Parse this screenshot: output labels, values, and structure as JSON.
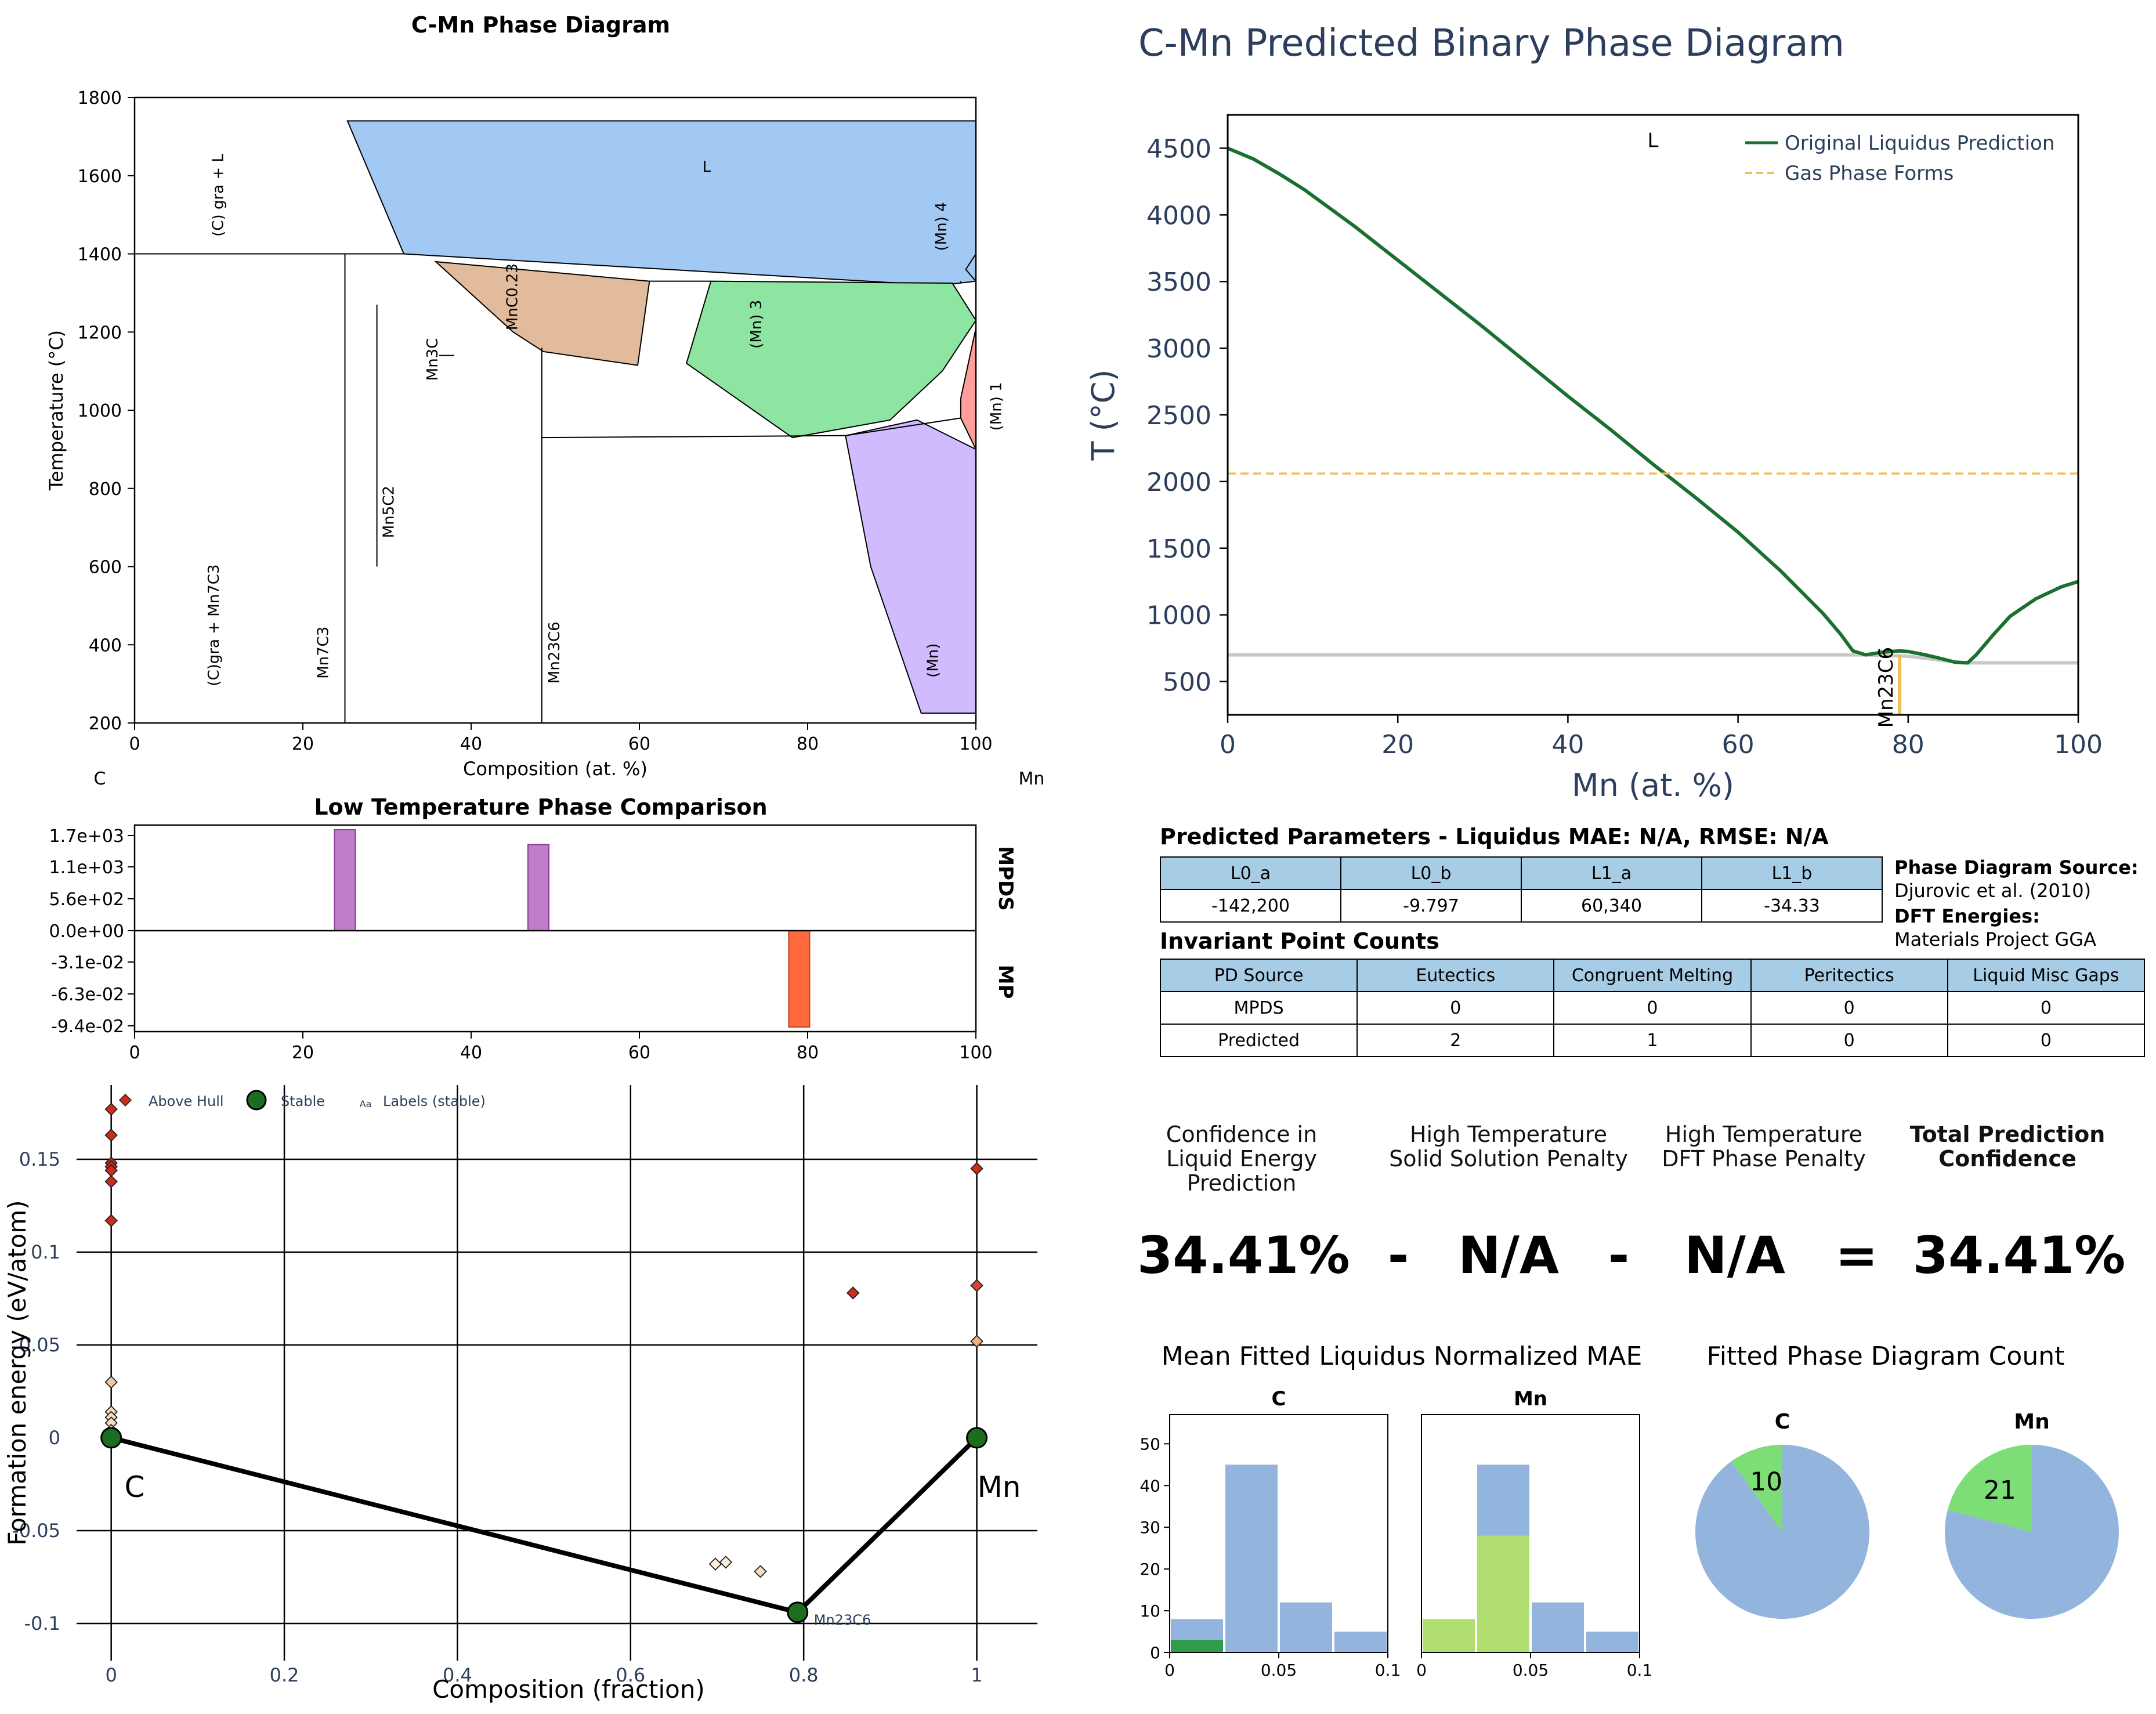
{
  "chart_data": [
    {
      "type": "diagram",
      "title": "C-Mn Phase Diagram",
      "xlabel": "Composition (at. %)",
      "ylabel": "Temperature (°C)",
      "xlim": [
        0,
        100
      ],
      "ylim": [
        200,
        1800
      ],
      "x_ticks": [
        "0",
        "20",
        "40",
        "60",
        "80",
        "100"
      ],
      "y_ticks": [
        "200",
        "400",
        "600",
        "800",
        "1000",
        "1200",
        "1400",
        "1600",
        "1800"
      ],
      "left_element": "C",
      "right_element": "Mn",
      "region_labels": [
        {
          "text": "L",
          "x": 68,
          "y": 1610
        },
        {
          "text": "(C) gra + L",
          "x": 10.5,
          "y": 1550
        },
        {
          "text": "(Mn) 4",
          "x": 96.5,
          "y": 1470
        },
        {
          "text": "MnC0.23",
          "x": 45.5,
          "y": 1290
        },
        {
          "text": "(Mn) 3",
          "x": 74.5,
          "y": 1220
        },
        {
          "text": "Mn3C",
          "x": 36,
          "y": 1130
        },
        {
          "text": "(Mn) 1",
          "x": 103,
          "y": 1010
        },
        {
          "text": "Mn5C2",
          "x": 30.8,
          "y": 740
        },
        {
          "text": "(C)gra + Mn7C3",
          "x": 10,
          "y": 450
        },
        {
          "text": "Mn7C3",
          "x": 23,
          "y": 380
        },
        {
          "text": "Mn23C6",
          "x": 50.5,
          "y": 380
        },
        {
          "text": "(Mn)",
          "x": 95.5,
          "y": 360
        }
      ],
      "regions": [
        {
          "name": "L",
          "color": "#a2c9f4",
          "points": [
            [
              25.3,
              1740
            ],
            [
              100,
              1740
            ],
            [
              100,
              1330
            ],
            [
              98,
              1325
            ],
            [
              95,
              1320
            ],
            [
              32,
              1400
            ]
          ]
        },
        {
          "name": "MnC0.23",
          "color": "#e1bb9b",
          "points": [
            [
              35.8,
              1380
            ],
            [
              61.2,
              1330
            ],
            [
              59.8,
              1115
            ],
            [
              48.6,
              1150
            ],
            [
              45,
              1200
            ]
          ]
        },
        {
          "name": "(Mn) 3",
          "color": "#8de5a1",
          "points": [
            [
              68.5,
              1330
            ],
            [
              97.2,
              1325
            ],
            [
              100,
              1230
            ],
            [
              96,
              1100
            ],
            [
              89.8,
              975
            ],
            [
              78.2,
              930
            ],
            [
              65.6,
              1120
            ]
          ]
        },
        {
          "name": "(Mn) 1",
          "color": "#ff9f9b",
          "points": [
            [
              100,
              1210
            ],
            [
              98.2,
              1030
            ],
            [
              98.2,
              980
            ],
            [
              100,
              900
            ]
          ]
        },
        {
          "name": "(Mn)",
          "color": "#d0bbff",
          "points": [
            [
              84.5,
              935
            ],
            [
              93,
              975
            ],
            [
              100,
              900
            ],
            [
              100,
              225
            ],
            [
              93.5,
              225
            ],
            [
              87.5,
              600
            ]
          ]
        }
      ],
      "lines": [
        {
          "points": [
            [
              0,
              1400
            ],
            [
              32,
              1400
            ]
          ]
        },
        {
          "points": [
            [
              25,
              1400
            ],
            [
              25,
              200
            ]
          ]
        },
        {
          "points": [
            [
              28.8,
              1270
            ],
            [
              28.8,
              600
            ]
          ]
        },
        {
          "points": [
            [
              37,
              1165
            ],
            [
              37,
              1165
            ]
          ]
        },
        {
          "points": [
            [
              48.4,
              1160
            ],
            [
              48.4,
              200
            ]
          ]
        },
        {
          "points": [
            [
              48.4,
              930
            ],
            [
              84.5,
              935
            ]
          ]
        },
        {
          "points": [
            [
              84.5,
              935
            ],
            [
              98.2,
              980
            ]
          ]
        },
        {
          "points": [
            [
              61.2,
              1330
            ],
            [
              68.5,
              1330
            ]
          ]
        },
        {
          "points": [
            [
              98.2,
              1325
            ],
            [
              98.2,
              1330
            ]
          ]
        },
        {
          "points": [
            [
              100,
              1330
            ],
            [
              98.8,
              1360
            ],
            [
              100,
              1400
            ],
            [
              100,
              1740
            ]
          ]
        }
      ]
    },
    {
      "type": "line",
      "title": "C-Mn Predicted Binary Phase Diagram",
      "xlabel": "Mn (at. %)",
      "ylabel": "T (°C)",
      "xlim": [
        0,
        100
      ],
      "ylim": [
        250,
        4750
      ],
      "x_ticks": [
        "0",
        "20",
        "40",
        "60",
        "80",
        "100"
      ],
      "y_ticks": [
        "500",
        "1000",
        "1500",
        "2000",
        "2500",
        "3000",
        "3500",
        "4000",
        "4500"
      ],
      "legend_position": "top-right",
      "series": [
        {
          "name": "Original Liquidus Prediction",
          "color": "#1a7030",
          "style": "solid",
          "x": [
            0,
            3,
            6,
            9,
            12,
            15,
            20,
            25,
            30,
            35,
            40,
            45,
            50,
            55,
            60,
            65,
            70,
            72,
            73.5,
            75,
            77,
            79,
            80,
            82,
            84,
            85.5,
            87,
            88,
            90,
            92,
            95,
            98,
            100
          ],
          "y": [
            4500,
            4420,
            4310,
            4190,
            4050,
            3910,
            3660,
            3410,
            3160,
            2900,
            2640,
            2390,
            2130,
            1880,
            1620,
            1330,
            1010,
            860,
            730,
            700,
            720,
            730,
            725,
            700,
            670,
            645,
            640,
            700,
            850,
            990,
            1120,
            1210,
            1250
          ]
        },
        {
          "name": "Gas Phase Forms",
          "color": "#f0bf55",
          "style": "dashed",
          "x": [
            0,
            100
          ],
          "y": [
            2060,
            2060
          ]
        }
      ],
      "extra_lines": [
        {
          "color": "#c8c8c8",
          "points": [
            [
              0,
              700
            ],
            [
              75,
              700
            ],
            [
              80,
              690
            ],
            [
              86.5,
              640
            ],
            [
              100,
              640
            ]
          ]
        },
        {
          "color": "#f0bf55",
          "points": [
            [
              79,
              700
            ],
            [
              79,
              250
            ]
          ]
        }
      ],
      "annotations": [
        {
          "text": "L",
          "x": 50,
          "y": 4560
        },
        {
          "text": "Mn23C6",
          "x": 77.5,
          "y": 500
        }
      ]
    },
    {
      "type": "bar",
      "title": "Low Temperature Phase Comparison",
      "xlim": [
        0,
        100
      ],
      "x_ticks": [
        "0",
        "20",
        "40",
        "60",
        "80",
        "100"
      ],
      "top_panel": {
        "label": "MPDS",
        "ylim": [
          0,
          1700
        ],
        "y_ticks": [
          "1.7e+03",
          "1.1e+03",
          "5.6e+02",
          "0.0e+00"
        ],
        "bars": [
          {
            "x": 25,
            "value": 1700,
            "color": "#c07ec8"
          },
          {
            "x": 48,
            "value": 1450,
            "color": "#c07ec8"
          }
        ]
      },
      "bottom_panel": {
        "label": "MP",
        "ylim": [
          -0.094,
          0
        ],
        "y_ticks": [
          "-3.1e-02",
          "-6.3e-02",
          "-9.4e-02"
        ],
        "bars": [
          {
            "x": 79,
            "value": -0.094,
            "color": "#ff6a3d"
          }
        ]
      }
    },
    {
      "type": "scatter",
      "xlabel": "Composition (fraction)",
      "ylabel": "Formation energy (eV/atom)",
      "xlim": [
        -0.04,
        1.07
      ],
      "ylim": [
        -0.12,
        0.19
      ],
      "x_ticks": [
        "0",
        "0.2",
        "0.4",
        "0.6",
        "0.8",
        "1"
      ],
      "y_ticks": [
        "0.15",
        "0.1",
        "0.05",
        "0",
        "-0.05",
        "-0.1"
      ],
      "legend": [
        {
          "label": "Above Hull",
          "mark": "diamond"
        },
        {
          "label": "Stable",
          "mark": "circle"
        },
        {
          "label": "Labels (stable)",
          "mark": "Aa"
        }
      ],
      "vertical_gridlines": [
        0,
        0.2,
        0.4,
        0.6,
        0.8,
        1
      ],
      "horizontal_gridlines": [
        0.15,
        0.1,
        0.05,
        -0.05,
        -0.1
      ],
      "hull": [
        [
          0,
          0
        ],
        [
          0.793,
          -0.094
        ],
        [
          1,
          0
        ]
      ],
      "stable": [
        {
          "x": 0,
          "y": 0,
          "label": "C"
        },
        {
          "x": 0.793,
          "y": -0.094,
          "label": "Mn23C6"
        },
        {
          "x": 1,
          "y": 0,
          "label": "Mn"
        }
      ],
      "above_hull": [
        {
          "x": 0,
          "y": 0.177,
          "color": "#cc2b1d"
        },
        {
          "x": 0,
          "y": 0.163,
          "color": "#cc2b1d"
        },
        {
          "x": 0,
          "y": 0.148,
          "color": "#cc2b1d"
        },
        {
          "x": 0,
          "y": 0.146,
          "color": "#cc2b1d"
        },
        {
          "x": 0,
          "y": 0.144,
          "color": "#cc2b1d"
        },
        {
          "x": 0,
          "y": 0.138,
          "color": "#cc2b1d"
        },
        {
          "x": 0,
          "y": 0.117,
          "color": "#cc2b1d"
        },
        {
          "x": 0,
          "y": 0.03,
          "color": "#f0c9a5"
        },
        {
          "x": 0,
          "y": 0.014,
          "color": "#f6dcc0"
        },
        {
          "x": 0,
          "y": 0.011,
          "color": "#f6dcc0"
        },
        {
          "x": 0,
          "y": 0.008,
          "color": "#f6dcc0"
        },
        {
          "x": 0,
          "y": 0.004,
          "color": "#f6dcc0"
        },
        {
          "x": 0.698,
          "y": -0.068,
          "color": "#fbeedd"
        },
        {
          "x": 0.71,
          "y": -0.067,
          "color": "#fbeedd"
        },
        {
          "x": 0.75,
          "y": -0.072,
          "color": "#f6dcc0"
        },
        {
          "x": 0.857,
          "y": 0.078,
          "color": "#cc2b1d"
        },
        {
          "x": 1,
          "y": 0.145,
          "color": "#cc2b1d"
        },
        {
          "x": 1,
          "y": 0.082,
          "color": "#d8442e"
        },
        {
          "x": 1,
          "y": 0.052,
          "color": "#f0b07c"
        }
      ]
    },
    {
      "type": "bar",
      "title": "Mean Fitted Liquidus Normalized MAE",
      "panels": [
        {
          "title": "C",
          "xlim": [
            0,
            0.1
          ],
          "ylim": [
            0,
            57
          ],
          "y_ticks": [
            "0",
            "10",
            "20",
            "30",
            "40",
            "50"
          ],
          "x_ticks": [
            "0",
            "0.05",
            "0.1"
          ],
          "bins": [
            [
              0,
              0.025
            ],
            [
              0.025,
              0.05
            ],
            [
              0.05,
              0.075
            ],
            [
              0.075,
              0.1
            ]
          ],
          "series": [
            {
              "values": [
                8,
                45,
                12,
                5
              ],
              "color": "#93b4dc"
            },
            {
              "values": [
                3,
                0,
                0,
                0
              ],
              "color": "#2e9c49"
            }
          ]
        },
        {
          "title": "Mn",
          "xlim": [
            0,
            0.1
          ],
          "ylim": [
            0,
            57
          ],
          "x_ticks": [
            "0",
            "0.05",
            "0.1"
          ],
          "bins": [
            [
              0,
              0.025
            ],
            [
              0.025,
              0.05
            ],
            [
              0.05,
              0.075
            ],
            [
              0.075,
              0.1
            ]
          ],
          "series": [
            {
              "values": [
                8,
                45,
                12,
                5
              ],
              "color": "#93b4dc"
            },
            {
              "values": [
                8,
                28,
                0,
                0
              ],
              "color": "#b1df6f"
            }
          ]
        }
      ]
    },
    {
      "type": "pie",
      "title": "Fitted Phase Diagram Count",
      "pies": [
        {
          "title": "C",
          "label": "10",
          "slices": [
            {
              "value": 10,
              "color": "#7ddd76"
            },
            {
              "value": 90,
              "color": "#93b4dc"
            }
          ]
        },
        {
          "title": "Mn",
          "label": "21",
          "slices": [
            {
              "value": 21,
              "color": "#7ddd76"
            },
            {
              "value": 79,
              "color": "#93b4dc"
            }
          ]
        }
      ]
    }
  ],
  "params": {
    "title": "Predicted Parameters - Liquidus MAE: N/A, RMSE: N/A",
    "headers": [
      "L0_a",
      "L0_b",
      "L1_a",
      "L1_b"
    ],
    "values": [
      "-142,200",
      "-9.797",
      "60,340",
      "-34.33"
    ]
  },
  "source": {
    "pd_label": "Phase Diagram Source:",
    "pd_value": "Djurovic et al. (2010)",
    "dft_label": "DFT Energies:",
    "dft_value": "Materials Project GGA"
  },
  "invariants": {
    "title": "Invariant Point Counts",
    "headers": [
      "PD Source",
      "Eutectics",
      "Congruent Melting",
      "Peritectics",
      "Liquid Misc Gaps"
    ],
    "rows": [
      [
        "MPDS",
        "0",
        "0",
        "0",
        "0"
      ],
      [
        "Predicted",
        "2",
        "1",
        "0",
        "0"
      ]
    ]
  },
  "confidence": {
    "label1": "Confidence in Liquid Energy Prediction",
    "label2": "High Temperature Solid Solution Penalty",
    "label3": "High Temperature DFT Phase Penalty",
    "label4": "Total Prediction Confidence",
    "value1": "34.41%",
    "op1": "-",
    "value2": "N/A",
    "op2": "-",
    "value3": "N/A",
    "op3": "=",
    "value4": "34.41%"
  },
  "colors": {
    "title_blue": "#2c3e5c",
    "table_header": "#a6cce6"
  }
}
